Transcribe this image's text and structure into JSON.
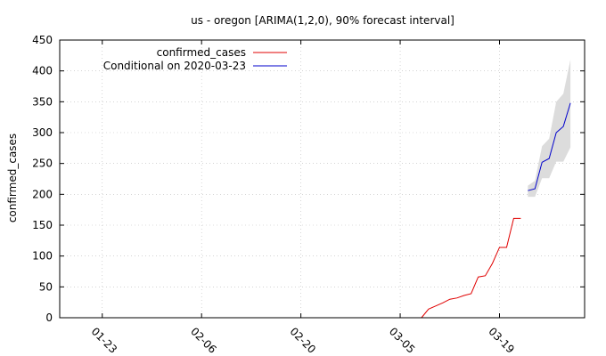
{
  "chart_data": {
    "type": "line",
    "title": "us - oregon [ARIMA(1,2,0), 90% forecast interval]",
    "xlabel": "",
    "ylabel": "confirmed_cases",
    "xlim": [
      "2020-01-17",
      "2020-03-31"
    ],
    "ylim": [
      0,
      450
    ],
    "x_ticks": [
      "2020-01-23",
      "2020-02-06",
      "2020-02-20",
      "2020-03-05",
      "2020-03-19"
    ],
    "x_tick_labels": [
      "01-23",
      "02-06",
      "02-20",
      "03-05",
      "03-19"
    ],
    "y_ticks": [
      0,
      50,
      100,
      150,
      200,
      250,
      300,
      350,
      400,
      450
    ],
    "grid": true,
    "legend_position": "top-left",
    "series": [
      {
        "name": "confirmed_cases",
        "color": "#e00000",
        "points": [
          [
            "2020-03-08",
            0
          ],
          [
            "2020-03-09",
            14
          ],
          [
            "2020-03-10",
            19
          ],
          [
            "2020-03-11",
            24
          ],
          [
            "2020-03-12",
            30
          ],
          [
            "2020-03-13",
            32
          ],
          [
            "2020-03-14",
            36
          ],
          [
            "2020-03-15",
            39
          ],
          [
            "2020-03-16",
            66
          ],
          [
            "2020-03-17",
            68
          ],
          [
            "2020-03-18",
            88
          ],
          [
            "2020-03-19",
            114
          ],
          [
            "2020-03-20",
            114
          ],
          [
            "2020-03-21",
            161
          ],
          [
            "2020-03-22",
            161
          ]
        ]
      },
      {
        "name": "Conditional on 2020-03-23",
        "color": "#0000cc",
        "points": [
          [
            "2020-03-23",
            206
          ],
          [
            "2020-03-24",
            209
          ],
          [
            "2020-03-25",
            252
          ],
          [
            "2020-03-26",
            258
          ],
          [
            "2020-03-27",
            300
          ],
          [
            "2020-03-28",
            310
          ],
          [
            "2020-03-29",
            348
          ]
        ],
        "interval": {
          "color": "#dcdcdc",
          "lower": [
            196,
            196,
            226,
            226,
            253,
            253,
            276
          ],
          "upper": [
            214,
            222,
            278,
            290,
            350,
            363,
            418
          ]
        }
      }
    ]
  }
}
